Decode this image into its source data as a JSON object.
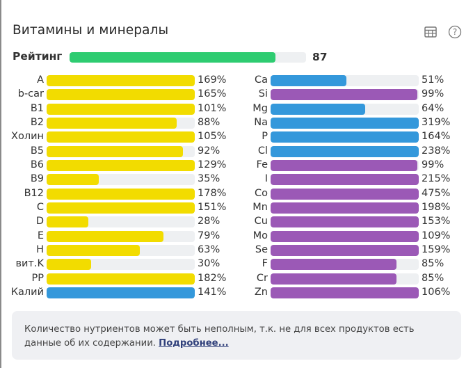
{
  "title": "Витамины и минералы",
  "icons": {
    "table": "table-icon",
    "help": "help-circle-icon"
  },
  "rating": {
    "label": "Рейтинг",
    "value": "87",
    "percent": 87,
    "color": "#2ecc71"
  },
  "colors": {
    "vitamin": "#f2dc00",
    "macro": "#3498db",
    "micro": "#9b59b6",
    "track": "#eef0f2"
  },
  "left": [
    {
      "label": "A",
      "value": "169%",
      "percent": 169,
      "kind": "vitamin"
    },
    {
      "label": "b-car",
      "value": "165%",
      "percent": 165,
      "kind": "vitamin"
    },
    {
      "label": "B1",
      "value": "101%",
      "percent": 101,
      "kind": "vitamin"
    },
    {
      "label": "B2",
      "value": "88%",
      "percent": 88,
      "kind": "vitamin"
    },
    {
      "label": "Холин",
      "value": "105%",
      "percent": 105,
      "kind": "vitamin"
    },
    {
      "label": "B5",
      "value": "92%",
      "percent": 92,
      "kind": "vitamin"
    },
    {
      "label": "B6",
      "value": "129%",
      "percent": 129,
      "kind": "vitamin"
    },
    {
      "label": "B9",
      "value": "35%",
      "percent": 35,
      "kind": "vitamin"
    },
    {
      "label": "B12",
      "value": "178%",
      "percent": 178,
      "kind": "vitamin"
    },
    {
      "label": "C",
      "value": "151%",
      "percent": 151,
      "kind": "vitamin"
    },
    {
      "label": "D",
      "value": "28%",
      "percent": 28,
      "kind": "vitamin"
    },
    {
      "label": "E",
      "value": "79%",
      "percent": 79,
      "kind": "vitamin"
    },
    {
      "label": "H",
      "value": "63%",
      "percent": 63,
      "kind": "vitamin"
    },
    {
      "label": "вит.K",
      "value": "30%",
      "percent": 30,
      "kind": "vitamin"
    },
    {
      "label": "PP",
      "value": "182%",
      "percent": 182,
      "kind": "vitamin"
    },
    {
      "label": "Калий",
      "value": "141%",
      "percent": 141,
      "kind": "macro"
    }
  ],
  "right": [
    {
      "label": "Ca",
      "value": "51%",
      "percent": 51,
      "kind": "macro"
    },
    {
      "label": "Si",
      "value": "99%",
      "percent": 99,
      "kind": "micro"
    },
    {
      "label": "Mg",
      "value": "64%",
      "percent": 64,
      "kind": "macro"
    },
    {
      "label": "Na",
      "value": "319%",
      "percent": 319,
      "kind": "macro"
    },
    {
      "label": "P",
      "value": "164%",
      "percent": 164,
      "kind": "macro"
    },
    {
      "label": "Cl",
      "value": "238%",
      "percent": 238,
      "kind": "macro"
    },
    {
      "label": "Fe",
      "value": "99%",
      "percent": 99,
      "kind": "micro"
    },
    {
      "label": "I",
      "value": "215%",
      "percent": 215,
      "kind": "micro"
    },
    {
      "label": "Co",
      "value": "475%",
      "percent": 475,
      "kind": "micro"
    },
    {
      "label": "Mn",
      "value": "198%",
      "percent": 198,
      "kind": "micro"
    },
    {
      "label": "Cu",
      "value": "153%",
      "percent": 153,
      "kind": "micro"
    },
    {
      "label": "Mo",
      "value": "109%",
      "percent": 109,
      "kind": "micro"
    },
    {
      "label": "Se",
      "value": "159%",
      "percent": 159,
      "kind": "micro"
    },
    {
      "label": "F",
      "value": "85%",
      "percent": 85,
      "kind": "micro"
    },
    {
      "label": "Cr",
      "value": "85%",
      "percent": 85,
      "kind": "micro"
    },
    {
      "label": "Zn",
      "value": "106%",
      "percent": 106,
      "kind": "micro"
    }
  ],
  "note": {
    "text": "Количество нутриентов может быть неполным, т.к. не для всех продуктов есть данные об их содержании. ",
    "link": "Подробнее..."
  }
}
